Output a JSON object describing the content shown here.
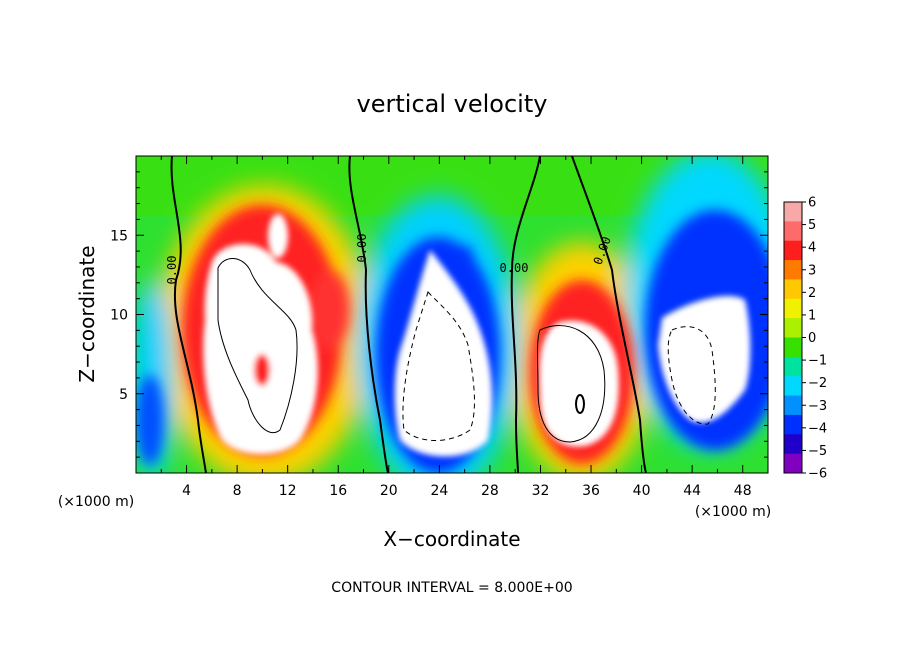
{
  "chart_data": {
    "type": "heatmap",
    "title": "vertical velocity",
    "xlabel": "X−coordinate",
    "ylabel": "Z−coordinate",
    "x_unit": "(×1000 m)",
    "y_unit": "(×1000 m)",
    "note": "CONTOUR INTERVAL = 8.000E+00",
    "xlim": [
      0,
      50
    ],
    "ylim": [
      0,
      20
    ],
    "x_ticks": [
      "4",
      "8",
      "12",
      "16",
      "20",
      "24",
      "28",
      "32",
      "36",
      "40",
      "44",
      "48"
    ],
    "y_ticks": [
      "5",
      "10",
      "15"
    ],
    "colorbar": {
      "min": -6,
      "max": 6,
      "labels": [
        "6",
        "5",
        "4",
        "3",
        "2",
        "1",
        "0",
        "−1",
        "−2",
        "−3",
        "−4",
        "−5",
        "−6"
      ],
      "colors": [
        "#f7a8a8",
        "#ff6a6a",
        "#ff1e1e",
        "#ff7a00",
        "#ffc800",
        "#f0f000",
        "#aaf000",
        "#38e000",
        "#00e2a0",
        "#00d8ff",
        "#0090ff",
        "#0030ff",
        "#2000c8",
        "#8000c0"
      ]
    },
    "contour_labels": [
      "0.00",
      "0.00",
      "0.00",
      "0.00"
    ],
    "cells": [
      {
        "x": 11,
        "z": 9,
        "w": 10
      },
      {
        "x": 24,
        "z": 7,
        "w": -10
      },
      {
        "x": 35,
        "z": 6,
        "w": 10
      },
      {
        "x": 45,
        "z": 7,
        "w": -8
      },
      {
        "x": 1.5,
        "z": 2.5,
        "w": -6
      },
      {
        "x": 26,
        "z": 13,
        "w": -4
      },
      {
        "x": 10,
        "z": 6.5,
        "w": 6
      }
    ]
  }
}
